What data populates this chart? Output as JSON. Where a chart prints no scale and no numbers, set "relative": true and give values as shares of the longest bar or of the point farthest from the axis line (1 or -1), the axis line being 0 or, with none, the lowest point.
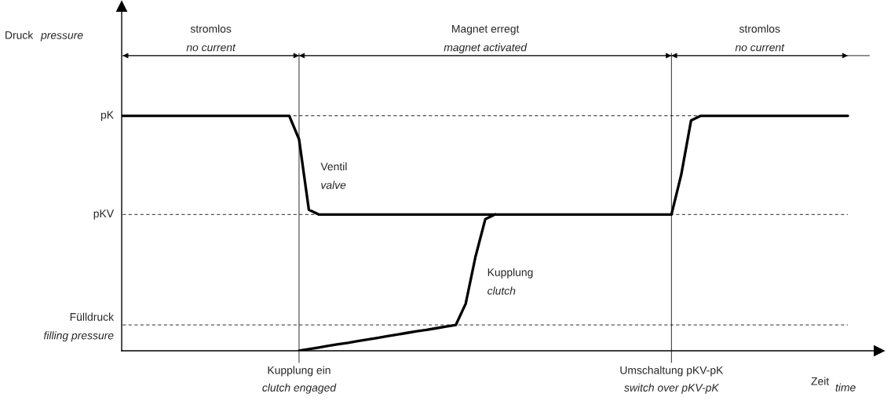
{
  "chart_data": {
    "type": "line",
    "relative": true,
    "ylabel": "Druck  pressure",
    "xlabel": "Zeit  time",
    "categories": [
      null,
      null,
      null,
      null,
      null,
      null,
      null,
      null,
      null,
      null,
      null,
      null,
      null,
      null,
      null,
      null,
      null,
      null,
      "Kupplung ein\nclutch engaged",
      null,
      null,
      null,
      null,
      null,
      null,
      null,
      null,
      null,
      null,
      null,
      null,
      null,
      null,
      null,
      null,
      null,
      null,
      null,
      null,
      null,
      null,
      null,
      null,
      null,
      null,
      null,
      null,
      null,
      null,
      null,
      null,
      null,
      null,
      null,
      null,
      null,
      "Umschaltung pKV-pK\nswitch over pKV-pK",
      null,
      null,
      null,
      null,
      null,
      null,
      null,
      null,
      null,
      null,
      null,
      null,
      null,
      null,
      null,
      null,
      null,
      null
    ],
    "series": [
      {
        "name": "Ventil\nvalve",
        "color": "#000000",
        "values": [
          1,
          1,
          1,
          1,
          1,
          1,
          1,
          1,
          1,
          1,
          1,
          1,
          1,
          1,
          1,
          1,
          1,
          1,
          0.9,
          0.6,
          0.58,
          0.58,
          0.58,
          0.58,
          0.58,
          0.58,
          0.58,
          0.58,
          0.58,
          0.58,
          0.58,
          0.58,
          0.58,
          0.58,
          0.58,
          0.58,
          0.58,
          0.58,
          0.58,
          0.58,
          0.58,
          0.58,
          0.58,
          0.58,
          0.58,
          0.58,
          0.58,
          0.58,
          0.58,
          0.58,
          0.58,
          0.58,
          0.58,
          0.58,
          0.58,
          0.58,
          0.58,
          0.75,
          0.98,
          1,
          1,
          1,
          1,
          1,
          1,
          1,
          1,
          1,
          1,
          1,
          1,
          1,
          1,
          1,
          1
        ]
      },
      {
        "name": "Kupplung\nclutch",
        "color": "#000000",
        "values": [
          null,
          null,
          null,
          null,
          null,
          null,
          null,
          null,
          null,
          null,
          null,
          null,
          null,
          null,
          null,
          null,
          null,
          null,
          0,
          0.007,
          0.014,
          0.021,
          0.028,
          0.034,
          0.041,
          0.048,
          0.055,
          0.062,
          0.069,
          0.076,
          0.083,
          0.089,
          0.096,
          0.103,
          0.11,
          0.2,
          0.4,
          0.56,
          0.58,
          null,
          null,
          null,
          null,
          null,
          null,
          null,
          null,
          null,
          null,
          null,
          null,
          null,
          null,
          null,
          null,
          null,
          null,
          null,
          null,
          null,
          null,
          null,
          null,
          null,
          null,
          null,
          null,
          null,
          null,
          null,
          null,
          null,
          null,
          null,
          null
        ]
      }
    ],
    "ref_lines": [
      {
        "axis": "y",
        "value": 1,
        "label": "pK",
        "line_style": "dashed"
      },
      {
        "axis": "y",
        "value": 0.58,
        "label": "pKV",
        "line_style": "dashed"
      },
      {
        "axis": "y",
        "value": 0.11,
        "label": "Fülldruck\nfilling pressure",
        "line_style": "dashed"
      }
    ],
    "annotations": [
      "stromlos\nno current",
      "Magnet erregt\nmagnet activated",
      "stromlos\nno current"
    ],
    "marker": "none",
    "line_style": "solid"
  }
}
